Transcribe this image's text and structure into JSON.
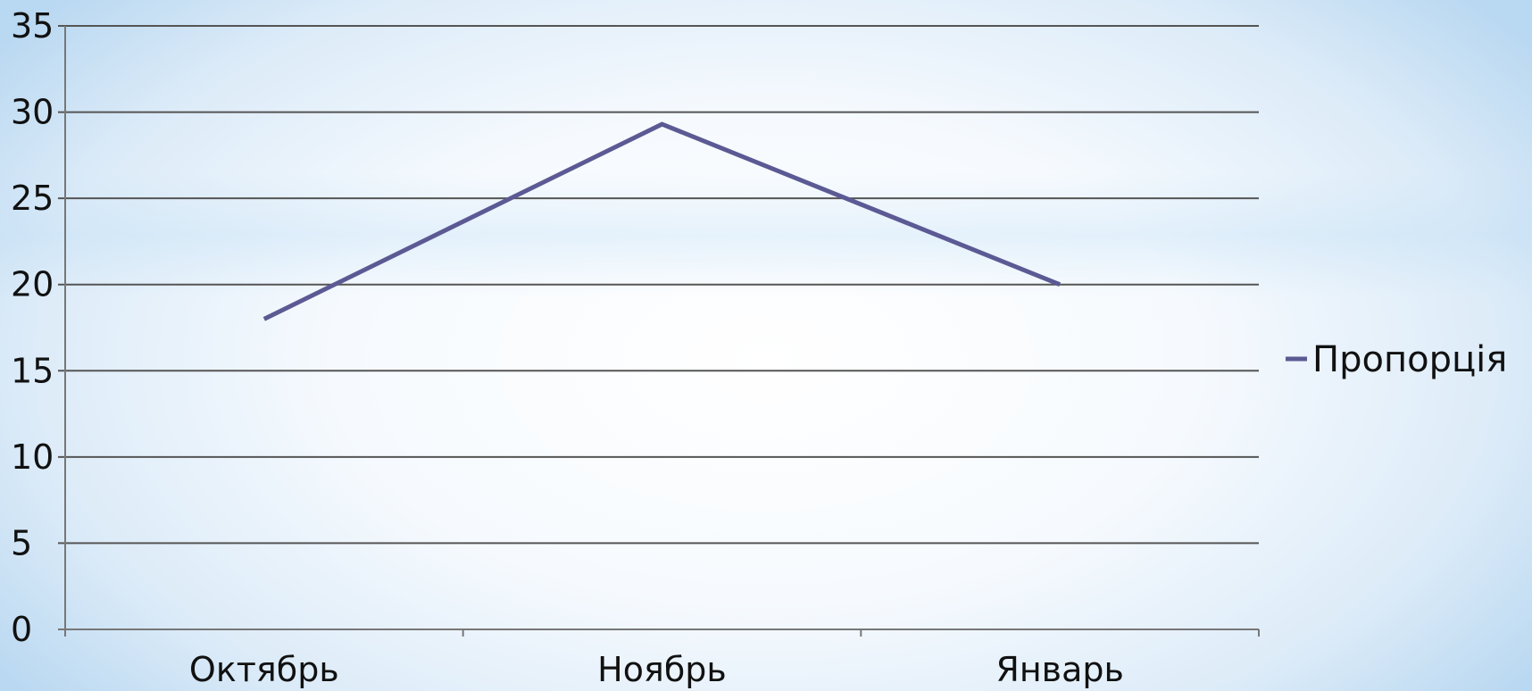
{
  "chart_data": {
    "type": "line",
    "title": "",
    "xlabel": "",
    "ylabel": "",
    "categories": [
      "Октябрь",
      "Ноябрь",
      "Январь"
    ],
    "series": [
      {
        "name": "Пропорція",
        "values": [
          18,
          29.3,
          20
        ],
        "color": "#5c5a94"
      }
    ],
    "ylim": [
      0,
      35
    ],
    "yticks": [
      "0",
      "5",
      "10",
      "15",
      "20",
      "25",
      "30",
      "35"
    ],
    "grid": true,
    "legend": "right"
  },
  "colors": {
    "gridline": "#555555",
    "axis": "#777777",
    "text": "#111111"
  }
}
